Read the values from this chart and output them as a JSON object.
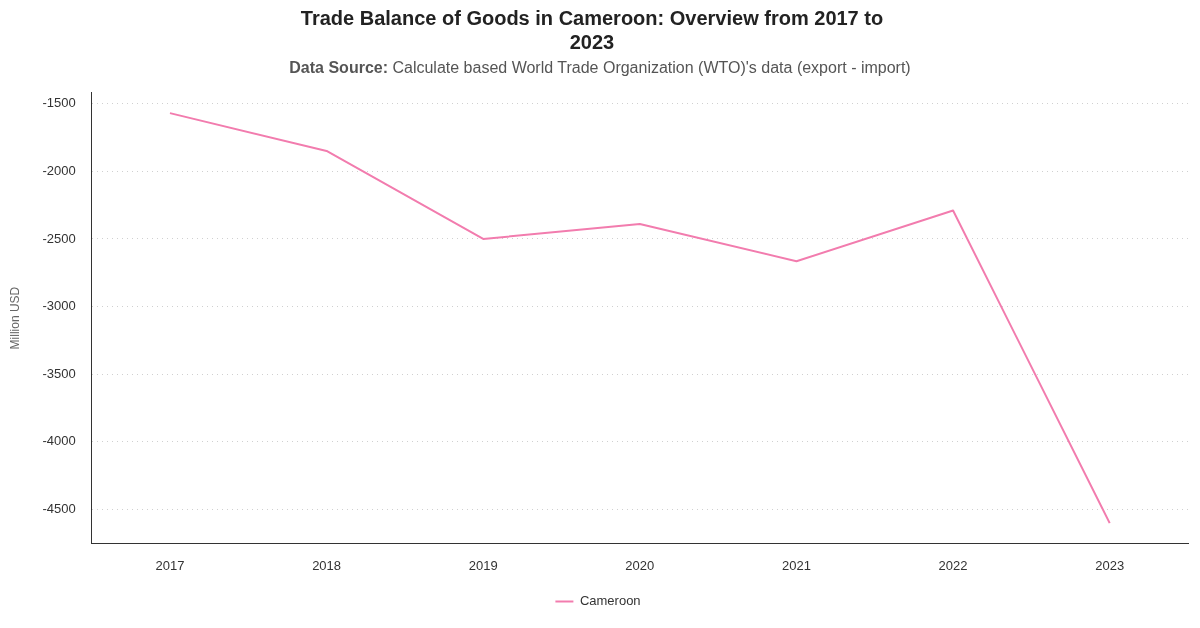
{
  "chart_data": {
    "type": "line",
    "title": "Trade Balance of Goods in Cameroon: Overview from 2017 to 2023",
    "subtitle": "Data Source: Calculate based World Trade Organization (WTO)'s data (export - import)",
    "ylabel": "Million USD",
    "categories": [
      "2017",
      "2018",
      "2019",
      "2020",
      "2021",
      "2022",
      "2023"
    ],
    "series": [
      {
        "name": "Cameroon",
        "color": "#f27cae",
        "values": [
          -1570,
          -1850,
          -2500,
          -2390,
          -2665,
          -2290,
          -4600
        ]
      }
    ],
    "ylim": [
      -4750,
      -1420
    ],
    "yticks": [
      -4500,
      -4000,
      -3500,
      -3000,
      -2500,
      -2000,
      -1500
    ],
    "grid": "y",
    "legend": "bottom",
    "marker": "none",
    "line_style": "solid"
  }
}
